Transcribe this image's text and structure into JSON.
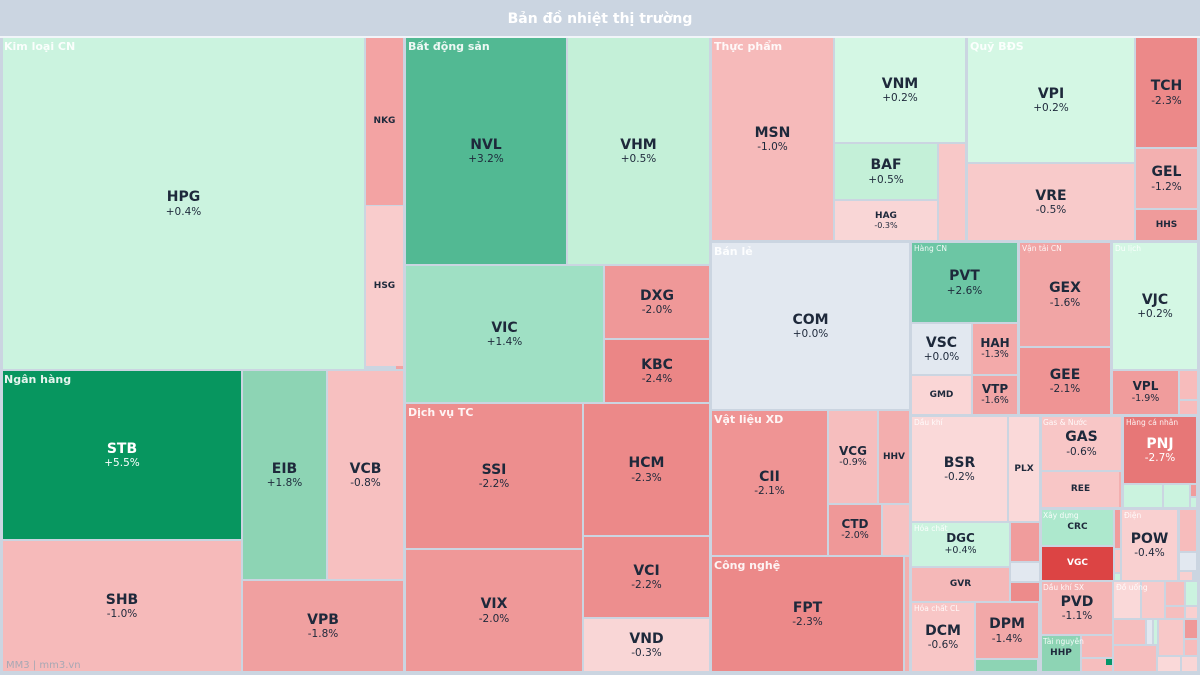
{
  "header": {
    "title": "Bản đồ nhiệt thị trường"
  },
  "watermark": "MM3 | mm3.vn",
  "colors": {
    "neutral": "#e2e8f0",
    "up_strong": "#07965f",
    "down_strong": "#dc4444",
    "background": "#cbd5e1"
  },
  "sectors": [
    {
      "label": "Kim loại CN",
      "tiles": [
        {
          "ticker": "HPG",
          "change": "+0.4%",
          "color": "#cbf3df"
        },
        {
          "ticker": "NKG",
          "change": "",
          "color": "#f3a3a3"
        },
        {
          "ticker": "HSG",
          "change": "",
          "color": "#f9cccc"
        }
      ]
    },
    {
      "label": "Ngân hàng",
      "tiles": [
        {
          "ticker": "STB",
          "change": "+5.5%",
          "color": "#07965f"
        },
        {
          "ticker": "SHB",
          "change": "-1.0%",
          "color": "#f6baba"
        },
        {
          "ticker": "EIB",
          "change": "+1.8%",
          "color": "#8dd4b4"
        },
        {
          "ticker": "VCB",
          "change": "-0.8%",
          "color": "#f7c0c0"
        },
        {
          "ticker": "VPB",
          "change": "-1.8%",
          "color": "#f0a0a0"
        }
      ]
    },
    {
      "label": "Bất động sản",
      "tiles": [
        {
          "ticker": "NVL",
          "change": "+3.2%",
          "color": "#52b993"
        },
        {
          "ticker": "VHM",
          "change": "+0.5%",
          "color": "#c4f0d8"
        },
        {
          "ticker": "VIC",
          "change": "+1.4%",
          "color": "#9fe0c4"
        },
        {
          "ticker": "DXG",
          "change": "-2.0%",
          "color": "#ef9898"
        },
        {
          "ticker": "KBC",
          "change": "-2.4%",
          "color": "#eb8686"
        }
      ]
    },
    {
      "label": "Dịch vụ TC",
      "tiles": [
        {
          "ticker": "SSI",
          "change": "-2.2%",
          "color": "#ed8e8e"
        },
        {
          "ticker": "VIX",
          "change": "-2.0%",
          "color": "#ef9898"
        },
        {
          "ticker": "HCM",
          "change": "-2.3%",
          "color": "#ec8989"
        },
        {
          "ticker": "VCI",
          "change": "-2.2%",
          "color": "#ed8e8e"
        },
        {
          "ticker": "VND",
          "change": "-0.3%",
          "color": "#f9d6d6"
        }
      ]
    },
    {
      "label": "Thực phẩm",
      "tiles": [
        {
          "ticker": "MSN",
          "change": "-1.0%",
          "color": "#f6baba"
        },
        {
          "ticker": "VNM",
          "change": "+0.2%",
          "color": "#d4f7e4"
        },
        {
          "ticker": "BAF",
          "change": "+0.5%",
          "color": "#c4f0d8"
        },
        {
          "ticker": "HAG",
          "change": "-0.3%",
          "color": "#f9d6d6"
        }
      ]
    },
    {
      "label": "Quỹ BĐS",
      "tiles": [
        {
          "ticker": "VPI",
          "change": "+0.2%",
          "color": "#d4f7e4"
        },
        {
          "ticker": "VRE",
          "change": "-0.5%",
          "color": "#f8caca"
        },
        {
          "ticker": "TCH",
          "change": "-2.3%",
          "color": "#ec8989"
        },
        {
          "ticker": "GEL",
          "change": "-1.2%",
          "color": "#f3b0b0"
        },
        {
          "ticker": "HHS",
          "change": "",
          "color": "#ef9b9b"
        }
      ]
    },
    {
      "label": "Bán lẻ",
      "tiles": [
        {
          "ticker": "COM",
          "change": "+0.0%",
          "color": "#e2e8f0"
        }
      ]
    },
    {
      "label": "Hàng CN",
      "tiles": [
        {
          "ticker": "PVT",
          "change": "+2.6%",
          "color": "#6cc6a4"
        },
        {
          "ticker": "VSC",
          "change": "+0.0%",
          "color": "#e2e8f0"
        },
        {
          "ticker": "HAH",
          "change": "-1.3%",
          "color": "#f3aaaa"
        },
        {
          "ticker": "GMD",
          "change": "",
          "color": "#fad6d6"
        },
        {
          "ticker": "VTP",
          "change": "-1.6%",
          "color": "#f1a5a5"
        }
      ]
    },
    {
      "label": "Vận tải CN",
      "tiles": [
        {
          "ticker": "GEX",
          "change": "-1.6%",
          "color": "#f1a5a5"
        },
        {
          "ticker": "GEE",
          "change": "-2.1%",
          "color": "#ef9494"
        }
      ]
    },
    {
      "label": "Du lịch",
      "tiles": [
        {
          "ticker": "VJC",
          "change": "+0.2%",
          "color": "#d4f7e4"
        },
        {
          "ticker": "VPL",
          "change": "-1.9%",
          "color": "#f09c9c"
        }
      ]
    },
    {
      "label": "Vật liệu XD",
      "tiles": [
        {
          "ticker": "CII",
          "change": "-2.1%",
          "color": "#ef9494"
        },
        {
          "ticker": "VCG",
          "change": "-0.9%",
          "color": "#f6bebe"
        },
        {
          "ticker": "HHV",
          "change": "",
          "color": "#f3aeae"
        },
        {
          "ticker": "CTD",
          "change": "-2.0%",
          "color": "#ef9898"
        }
      ]
    },
    {
      "label": "Công nghệ",
      "tiles": [
        {
          "ticker": "FPT",
          "change": "-2.3%",
          "color": "#ec8989"
        }
      ]
    },
    {
      "label": "Dầu khí",
      "tiles": [
        {
          "ticker": "BSR",
          "change": "-0.2%",
          "color": "#fad9d9"
        },
        {
          "ticker": "PLX",
          "change": "",
          "color": "#fad9d9"
        }
      ]
    },
    {
      "label": "Hóa chất",
      "tiles": [
        {
          "ticker": "DGC",
          "change": "+0.4%",
          "color": "#cbf3df"
        },
        {
          "ticker": "GVR",
          "change": "",
          "color": "#f5b8b8"
        }
      ]
    },
    {
      "label": "Hóa chất CL",
      "tiles": [
        {
          "ticker": "DCM",
          "change": "-0.6%",
          "color": "#f8c6c6"
        },
        {
          "ticker": "DPM",
          "change": "-1.4%",
          "color": "#f2a8a8"
        }
      ]
    },
    {
      "label": "Gas & Nước",
      "tiles": [
        {
          "ticker": "GAS",
          "change": "-0.6%",
          "color": "#f8c6c6"
        },
        {
          "ticker": "REE",
          "change": "",
          "color": "#f8c6c6"
        }
      ]
    },
    {
      "label": "Hàng cá nhân",
      "tiles": [
        {
          "ticker": "PNJ",
          "change": "-2.7%",
          "color": "#e77777"
        }
      ]
    },
    {
      "label": "Xây dựng",
      "tiles": [
        {
          "ticker": "CRC",
          "change": "",
          "color": "#ade8cd"
        },
        {
          "ticker": "VGC",
          "change": "",
          "color": "#dc4444"
        }
      ]
    },
    {
      "label": "Điện",
      "tiles": [
        {
          "ticker": "POW",
          "change": "-0.4%",
          "color": "#f9d0d0"
        }
      ]
    },
    {
      "label": "Dầu khí SX",
      "tiles": [
        {
          "ticker": "PVD",
          "change": "-1.1%",
          "color": "#f4b4b4"
        }
      ]
    },
    {
      "label": "Tài nguyên",
      "tiles": [
        {
          "ticker": "HHP",
          "change": "",
          "color": "#8dd4b4"
        }
      ]
    },
    {
      "label": "Đồ uống",
      "tiles": []
    }
  ]
}
